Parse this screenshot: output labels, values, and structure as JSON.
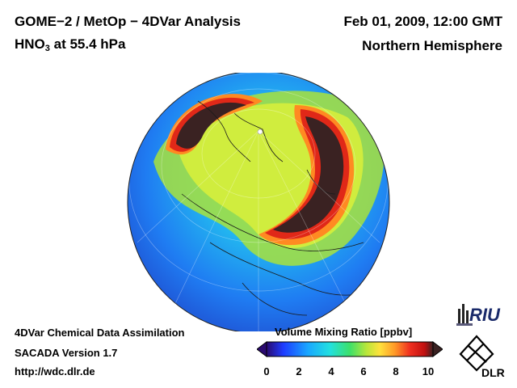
{
  "header": {
    "title_line1": "GOME−2 / MetOp − 4DVar Analysis",
    "species_main": "HNO",
    "species_sub": "3",
    "species_rest": " at 55.4 hPa",
    "date": "Feb 01, 2009, 12:00 GMT",
    "hemisphere": "Northern Hemisphere"
  },
  "footer": {
    "line1": "4DVar Chemical Data Assimilation",
    "line2": "SACADA Version 1.7",
    "url": "http://wdc.dlr.de"
  },
  "colorbar": {
    "title": "Volume Mixing Ratio [ppbv]",
    "ticks": [
      "0",
      "2",
      "4",
      "6",
      "8",
      "10"
    ],
    "colors": [
      "#2a0a70",
      "#1e3cff",
      "#19a8ff",
      "#22e0e0",
      "#3ce06a",
      "#b8e63a",
      "#ffe23c",
      "#ff9a28",
      "#f03020",
      "#c01010",
      "#3a2222"
    ]
  },
  "logos": {
    "riu": "RIU",
    "dlr": "DLR"
  }
}
